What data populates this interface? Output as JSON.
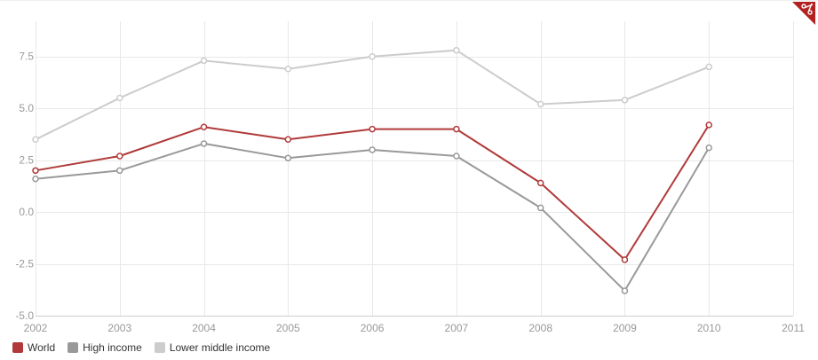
{
  "colors": {
    "grid": "#e8e8e8",
    "axis": "#cccccc",
    "tick_text": "#999999",
    "badge": "#b22222"
  },
  "badge": {
    "icon": "scissors-icon"
  },
  "chart_data": {
    "type": "line",
    "x": [
      2002,
      2003,
      2004,
      2005,
      2006,
      2007,
      2008,
      2009,
      2010
    ],
    "xlim": [
      2002,
      2011
    ],
    "ylim": [
      -5.0,
      9.2
    ],
    "x_ticks": [
      "2002",
      "2003",
      "2004",
      "2005",
      "2006",
      "2007",
      "2008",
      "2009",
      "2010",
      "2011"
    ],
    "y_ticks": [
      {
        "value": -5.0,
        "label": "-5.0"
      },
      {
        "value": -2.5,
        "label": "-2.5"
      },
      {
        "value": 0.0,
        "label": "0.0"
      },
      {
        "value": 2.5,
        "label": "2.5"
      },
      {
        "value": 5.0,
        "label": "5.0"
      },
      {
        "value": 7.5,
        "label": "7.5"
      }
    ],
    "grid": true,
    "legend_position": "bottom-left",
    "series": [
      {
        "name": "Lower middle income",
        "color": "#cccccc",
        "values": [
          3.5,
          5.5,
          7.3,
          6.9,
          7.5,
          7.8,
          5.2,
          5.4,
          7.0
        ]
      },
      {
        "name": "High income",
        "color": "#999999",
        "values": [
          1.6,
          2.0,
          3.3,
          2.6,
          3.0,
          2.7,
          0.2,
          -3.8,
          3.1
        ]
      },
      {
        "name": "World",
        "color": "#b03a3a",
        "values": [
          2.0,
          2.7,
          4.1,
          3.5,
          4.0,
          4.0,
          1.4,
          -2.3,
          4.2
        ]
      }
    ],
    "legend_order": [
      "World",
      "High income",
      "Lower middle income"
    ]
  }
}
